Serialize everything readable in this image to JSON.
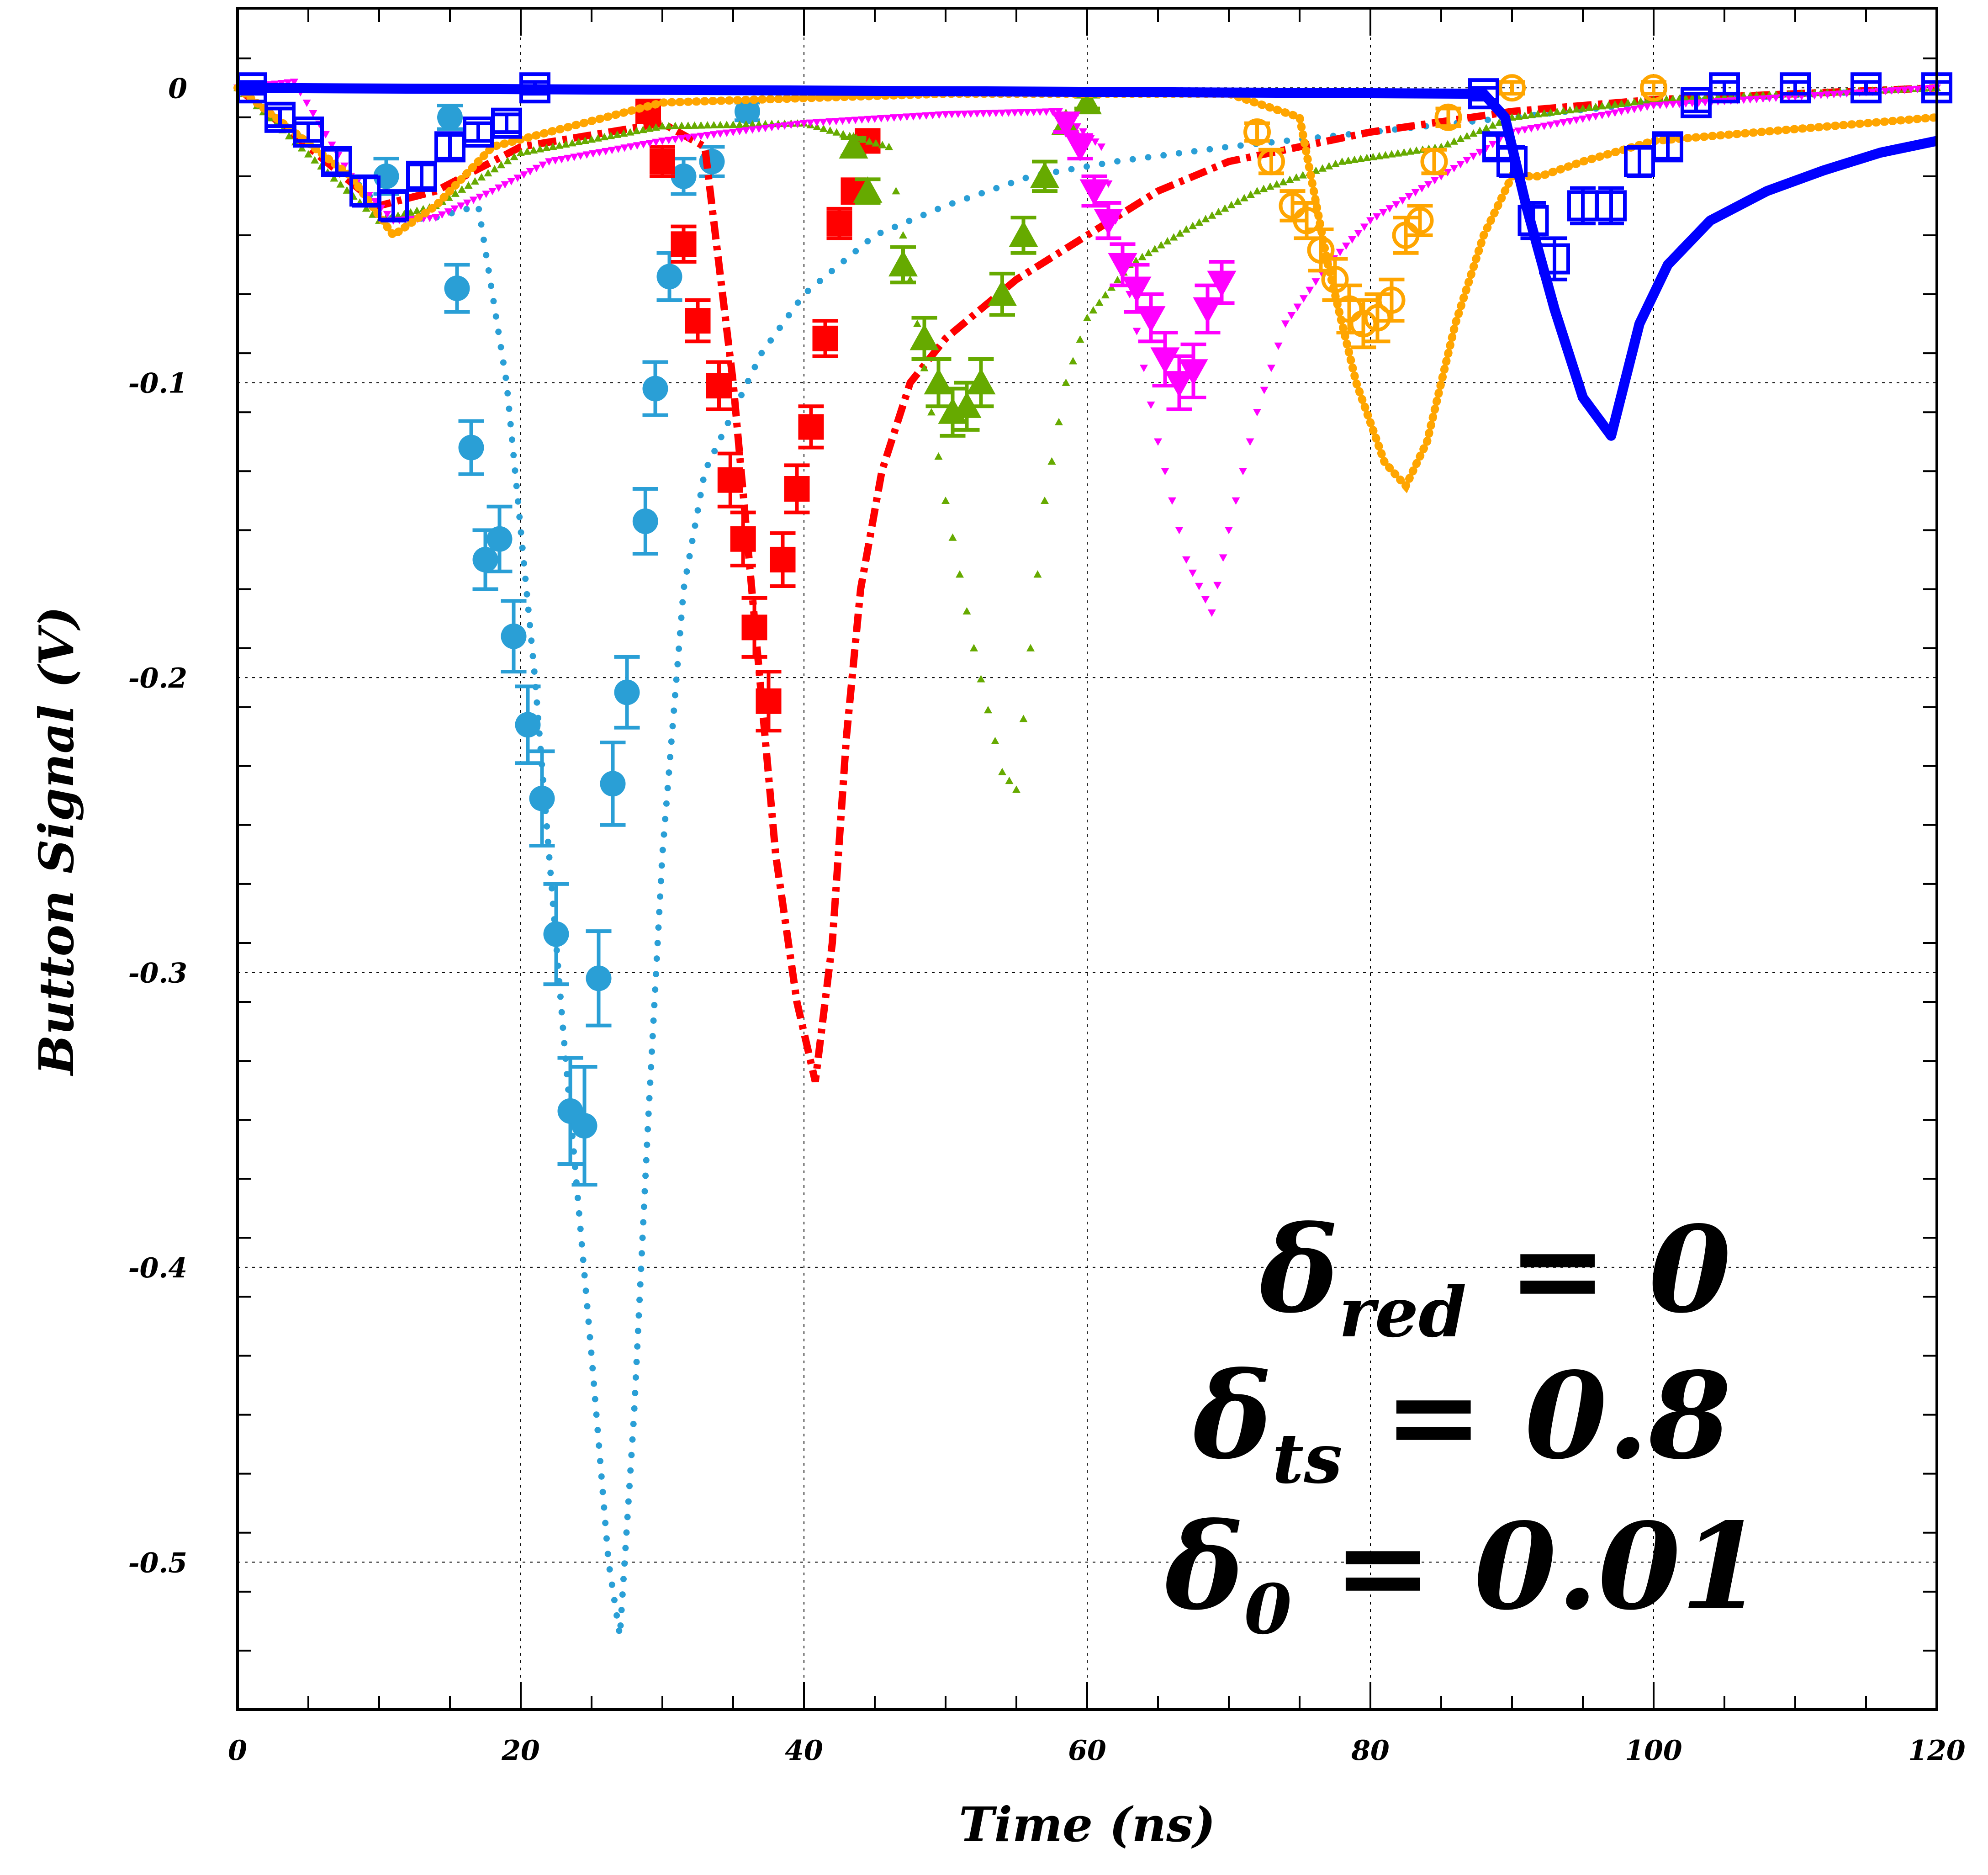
{
  "chart_data": {
    "type": "scatter",
    "title": "",
    "xlabel": "Time (ns)",
    "ylabel": "Button Signal (V)",
    "xlim": [
      0,
      120
    ],
    "ylim": [
      -0.55,
      0.027
    ],
    "xticks": [
      0,
      20,
      40,
      60,
      80,
      100,
      120
    ],
    "yticks": [
      0,
      -0.1,
      -0.2,
      -0.3,
      -0.4,
      -0.5
    ],
    "xtick_labels": [
      "0",
      "20",
      "40",
      "60",
      "80",
      "100",
      "120"
    ],
    "ytick_labels": [
      "0",
      "-0.1",
      "-0.2",
      "-0.3",
      "-0.4",
      "-0.5"
    ],
    "grid": true,
    "legend": "none",
    "annotations": [
      {
        "symbol": "δ",
        "subscript": "red",
        "rest": " = 0"
      },
      {
        "symbol": "δ",
        "subscript": "ts",
        "rest": " = 0.8"
      },
      {
        "symbol": "δ",
        "subscript": "0",
        "rest": " = 0.01"
      }
    ],
    "series": [
      {
        "color": "#2a9fd6",
        "kind": "simulation",
        "style": "dotted",
        "points": [
          [
            0,
            0
          ],
          [
            8,
            -0.03
          ],
          [
            11,
            -0.045
          ],
          [
            14,
            -0.044
          ],
          [
            17,
            -0.04
          ],
          [
            19,
            -0.1
          ],
          [
            21,
            -0.2
          ],
          [
            23,
            -0.32
          ],
          [
            25,
            -0.43
          ],
          [
            26.2,
            -0.5
          ],
          [
            27,
            -0.525
          ],
          [
            28,
            -0.45
          ],
          [
            29,
            -0.35
          ],
          [
            30,
            -0.26
          ],
          [
            31.5,
            -0.17
          ],
          [
            33,
            -0.13
          ],
          [
            35,
            -0.11
          ],
          [
            37,
            -0.09
          ],
          [
            40,
            -0.07
          ],
          [
            45,
            -0.05
          ],
          [
            50,
            -0.04
          ],
          [
            56,
            -0.03
          ],
          [
            62,
            -0.025
          ],
          [
            70,
            -0.02
          ],
          [
            80,
            -0.015
          ],
          [
            90,
            -0.01
          ],
          [
            100,
            -0.005
          ],
          [
            120,
            0
          ]
        ]
      },
      {
        "color": "#2a9fd6",
        "kind": "measurement",
        "marker": "circle",
        "points": [
          [
            10.5,
            -0.03
          ],
          [
            15,
            -0.01
          ],
          [
            15.5,
            -0.068
          ],
          [
            16.5,
            -0.122
          ],
          [
            17.5,
            -0.16
          ],
          [
            18.5,
            -0.153
          ],
          [
            19.5,
            -0.186
          ],
          [
            20.5,
            -0.216
          ],
          [
            21.5,
            -0.241
          ],
          [
            22.5,
            -0.287
          ],
          [
            23.5,
            -0.347
          ],
          [
            24.5,
            -0.352
          ],
          [
            25.5,
            -0.302
          ],
          [
            26.5,
            -0.236
          ],
          [
            27.5,
            -0.205
          ],
          [
            28.8,
            -0.147
          ],
          [
            29.5,
            -0.102
          ],
          [
            30.5,
            -0.064
          ],
          [
            31.5,
            -0.03
          ],
          [
            33.5,
            -0.025
          ],
          [
            36,
            -0.008
          ]
        ],
        "errors": [
          0.006,
          0.004,
          0.008,
          0.009,
          0.01,
          0.011,
          0.012,
          0.013,
          0.016,
          0.017,
          0.018,
          0.02,
          0.016,
          0.014,
          0.012,
          0.011,
          0.009,
          0.008,
          0.006,
          0.005,
          0.003
        ]
      },
      {
        "color": "#ff0000",
        "kind": "simulation",
        "style": "dash-dot",
        "points": [
          [
            0,
            0
          ],
          [
            10,
            -0.04
          ],
          [
            14,
            -0.035
          ],
          [
            20,
            -0.02
          ],
          [
            30,
            -0.012
          ],
          [
            33,
            -0.02
          ],
          [
            35,
            -0.1
          ],
          [
            36.5,
            -0.18
          ],
          [
            38,
            -0.26
          ],
          [
            39.5,
            -0.31
          ],
          [
            40.8,
            -0.337
          ],
          [
            42,
            -0.29
          ],
          [
            43,
            -0.22
          ],
          [
            44,
            -0.17
          ],
          [
            45.5,
            -0.13
          ],
          [
            47.5,
            -0.1
          ],
          [
            50,
            -0.085
          ],
          [
            55,
            -0.065
          ],
          [
            60,
            -0.05
          ],
          [
            65,
            -0.035
          ],
          [
            70,
            -0.025
          ],
          [
            80,
            -0.015
          ],
          [
            90,
            -0.008
          ],
          [
            100,
            -0.004
          ],
          [
            120,
            0
          ]
        ]
      },
      {
        "color": "#ff0000",
        "kind": "measurement",
        "marker": "square",
        "points": [
          [
            29,
            -0.008
          ],
          [
            30,
            -0.025
          ],
          [
            31.5,
            -0.053
          ],
          [
            32.5,
            -0.079
          ],
          [
            34,
            -0.101
          ],
          [
            34.8,
            -0.133
          ],
          [
            35.7,
            -0.153
          ],
          [
            36.5,
            -0.183
          ],
          [
            37.5,
            -0.208
          ],
          [
            38.5,
            -0.16
          ],
          [
            39.5,
            -0.136
          ],
          [
            40.5,
            -0.115
          ],
          [
            41.5,
            -0.085
          ],
          [
            42.5,
            -0.046
          ],
          [
            43.5,
            -0.035
          ],
          [
            44.5,
            -0.018
          ]
        ],
        "errors": [
          0.003,
          0.005,
          0.006,
          0.007,
          0.008,
          0.009,
          0.009,
          0.01,
          0.01,
          0.009,
          0.008,
          0.007,
          0.006,
          0.005,
          0.004,
          0.003
        ]
      },
      {
        "color": "#66aa00",
        "kind": "simulation",
        "style": "small-triangles",
        "points": [
          [
            0,
            0
          ],
          [
            10,
            -0.045
          ],
          [
            14,
            -0.04
          ],
          [
            20,
            -0.022
          ],
          [
            30,
            -0.013
          ],
          [
            40,
            -0.012
          ],
          [
            46,
            -0.02
          ],
          [
            48,
            -0.08
          ],
          [
            50,
            -0.14
          ],
          [
            52,
            -0.19
          ],
          [
            54,
            -0.232
          ],
          [
            55,
            -0.238
          ],
          [
            56,
            -0.19
          ],
          [
            57,
            -0.14
          ],
          [
            58.5,
            -0.1
          ],
          [
            60,
            -0.078
          ],
          [
            63,
            -0.06
          ],
          [
            67,
            -0.048
          ],
          [
            72,
            -0.035
          ],
          [
            78,
            -0.025
          ],
          [
            85,
            -0.02
          ],
          [
            90,
            -0.01
          ],
          [
            100,
            -0.004
          ],
          [
            120,
            0
          ]
        ]
      },
      {
        "color": "#66aa00",
        "kind": "measurement",
        "marker": "triangle-up",
        "points": [
          [
            43.5,
            -0.02
          ],
          [
            44.5,
            -0.035
          ],
          [
            47,
            -0.06
          ],
          [
            48.5,
            -0.085
          ],
          [
            49.5,
            -0.1
          ],
          [
            50.5,
            -0.11
          ],
          [
            51.5,
            -0.108
          ],
          [
            52.5,
            -0.1
          ],
          [
            54,
            -0.07
          ],
          [
            55.5,
            -0.05
          ],
          [
            57,
            -0.03
          ],
          [
            58.5,
            -0.012
          ],
          [
            60,
            -0.005
          ]
        ],
        "errors": [
          0.003,
          0.004,
          0.006,
          0.007,
          0.008,
          0.008,
          0.008,
          0.008,
          0.007,
          0.006,
          0.005,
          0.003,
          0.002
        ]
      },
      {
        "color": "#ff00ff",
        "kind": "simulation",
        "style": "small-triangles-down",
        "points": [
          [
            0,
            0
          ],
          [
            4,
            0.002
          ],
          [
            8,
            -0.03
          ],
          [
            11,
            -0.045
          ],
          [
            14,
            -0.044
          ],
          [
            18,
            -0.035
          ],
          [
            22,
            -0.025
          ],
          [
            30,
            -0.018
          ],
          [
            40,
            -0.012
          ],
          [
            50,
            -0.009
          ],
          [
            58,
            -0.008
          ],
          [
            61,
            -0.02
          ],
          [
            63,
            -0.07
          ],
          [
            65,
            -0.12
          ],
          [
            67,
            -0.16
          ],
          [
            68.8,
            -0.178
          ],
          [
            70,
            -0.15
          ],
          [
            72,
            -0.11
          ],
          [
            74,
            -0.08
          ],
          [
            77,
            -0.06
          ],
          [
            80,
            -0.045
          ],
          [
            85,
            -0.03
          ],
          [
            90,
            -0.015
          ],
          [
            100,
            -0.006
          ],
          [
            120,
            0
          ]
        ]
      },
      {
        "color": "#ff00ff",
        "kind": "measurement",
        "marker": "triangle-down",
        "points": [
          [
            58.5,
            -0.012
          ],
          [
            59.5,
            -0.02
          ],
          [
            60.5,
            -0.035
          ],
          [
            61.5,
            -0.045
          ],
          [
            62.5,
            -0.06
          ],
          [
            63.5,
            -0.068
          ],
          [
            64.5,
            -0.078
          ],
          [
            65.5,
            -0.092
          ],
          [
            66.5,
            -0.1
          ],
          [
            67.5,
            -0.096
          ],
          [
            68.5,
            -0.075
          ],
          [
            69.5,
            -0.066
          ]
        ],
        "errors": [
          0.003,
          0.004,
          0.005,
          0.006,
          0.007,
          0.008,
          0.008,
          0.009,
          0.009,
          0.009,
          0.008,
          0.007
        ]
      },
      {
        "color": "#ffa500",
        "kind": "simulation",
        "style": "solid-dots",
        "points": [
          [
            0,
            0
          ],
          [
            8,
            -0.03
          ],
          [
            11,
            -0.05
          ],
          [
            14,
            -0.04
          ],
          [
            18,
            -0.02
          ],
          [
            30,
            -0.005
          ],
          [
            50,
            -0.002
          ],
          [
            70,
            -0.002
          ],
          [
            75,
            -0.01
          ],
          [
            77,
            -0.06
          ],
          [
            79,
            -0.1
          ],
          [
            81,
            -0.127
          ],
          [
            82.5,
            -0.135
          ],
          [
            84,
            -0.12
          ],
          [
            86,
            -0.08
          ],
          [
            88,
            -0.05
          ],
          [
            90,
            -0.03
          ],
          [
            92,
            -0.03
          ],
          [
            95,
            -0.025
          ],
          [
            100,
            -0.018
          ],
          [
            110,
            -0.014
          ],
          [
            120,
            -0.01
          ]
        ]
      },
      {
        "color": "#ffa500",
        "kind": "measurement",
        "marker": "open-circle",
        "points": [
          [
            72,
            -0.015
          ],
          [
            73,
            -0.025
          ],
          [
            74.5,
            -0.04
          ],
          [
            75.5,
            -0.045
          ],
          [
            76.5,
            -0.055
          ],
          [
            77.5,
            -0.065
          ],
          [
            78.5,
            -0.075
          ],
          [
            79.5,
            -0.08
          ],
          [
            80.5,
            -0.078
          ],
          [
            81.5,
            -0.072
          ],
          [
            82.5,
            -0.05
          ],
          [
            83.5,
            -0.045
          ],
          [
            84.5,
            -0.025
          ],
          [
            85.5,
            -0.01
          ],
          [
            90,
            0
          ],
          [
            100,
            0
          ]
        ],
        "errors": [
          0.003,
          0.004,
          0.005,
          0.006,
          0.007,
          0.007,
          0.008,
          0.008,
          0.008,
          0.007,
          0.006,
          0.005,
          0.004,
          0.003,
          0.002,
          0.002
        ]
      },
      {
        "color": "#0000ff",
        "kind": "simulation",
        "style": "solid-thick",
        "points": [
          [
            0,
            0
          ],
          [
            88,
            -0.002
          ],
          [
            89.5,
            -0.01
          ],
          [
            91,
            -0.04
          ],
          [
            93,
            -0.075
          ],
          [
            95,
            -0.105
          ],
          [
            97,
            -0.118
          ],
          [
            99,
            -0.08
          ],
          [
            101,
            -0.06
          ],
          [
            104,
            -0.045
          ],
          [
            108,
            -0.035
          ],
          [
            112,
            -0.028
          ],
          [
            116,
            -0.022
          ],
          [
            120,
            -0.018
          ]
        ]
      },
      {
        "color": "#0000ff",
        "kind": "measurement",
        "marker": "open-square",
        "points": [
          [
            1,
            0
          ],
          [
            3,
            -0.01
          ],
          [
            5,
            -0.015
          ],
          [
            7,
            -0.025
          ],
          [
            9,
            -0.035
          ],
          [
            11,
            -0.04
          ],
          [
            13,
            -0.03
          ],
          [
            15,
            -0.02
          ],
          [
            17,
            -0.015
          ],
          [
            19,
            -0.012
          ],
          [
            21,
            0
          ],
          [
            88,
            -0.002
          ],
          [
            89,
            -0.02
          ],
          [
            90,
            -0.025
          ],
          [
            91.5,
            -0.045
          ],
          [
            93,
            -0.058
          ],
          [
            95,
            -0.04
          ],
          [
            97,
            -0.04
          ],
          [
            99,
            -0.025
          ],
          [
            101,
            -0.02
          ],
          [
            103,
            -0.005
          ],
          [
            105,
            0
          ],
          [
            110,
            0
          ],
          [
            115,
            0
          ],
          [
            120,
            0
          ]
        ],
        "errors": [
          0.002,
          0.003,
          0.003,
          0.004,
          0.005,
          0.005,
          0.004,
          0.004,
          0.003,
          0.003,
          0.002,
          0.002,
          0.004,
          0.005,
          0.006,
          0.007,
          0.006,
          0.006,
          0.005,
          0.004,
          0.003,
          0.002,
          0.002,
          0.002,
          0.002
        ]
      }
    ]
  }
}
